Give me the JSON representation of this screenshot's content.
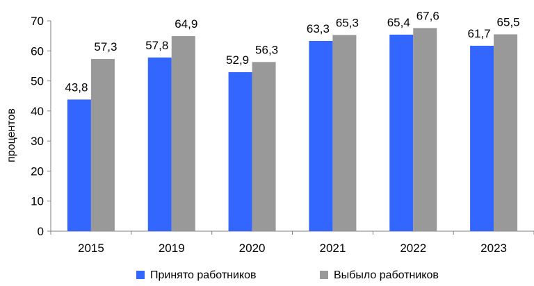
{
  "chart_data": {
    "type": "bar",
    "categories": [
      "2015",
      "2019",
      "2020",
      "2021",
      "2022",
      "2023"
    ],
    "series": [
      {
        "name": "Принято работников",
        "values": [
          43.8,
          57.8,
          52.9,
          63.3,
          65.4,
          61.7
        ],
        "color": "#3366ff"
      },
      {
        "name": "Выбыло работников",
        "values": [
          57.3,
          64.9,
          56.3,
          65.3,
          67.6,
          65.5
        ],
        "color": "#999999"
      }
    ],
    "value_labels": [
      [
        "43,8",
        "57,8",
        "52,9",
        "63,3",
        "65,4",
        "61,7"
      ],
      [
        "57,3",
        "64,9",
        "56,3",
        "65,3",
        "67,6",
        "65,5"
      ]
    ],
    "ylabel": "процентов",
    "xlabel": "",
    "ylim": [
      0,
      70
    ],
    "yticks": [
      0,
      10,
      20,
      30,
      40,
      50,
      60,
      70
    ],
    "grid": false,
    "legend_position": "bottom"
  }
}
